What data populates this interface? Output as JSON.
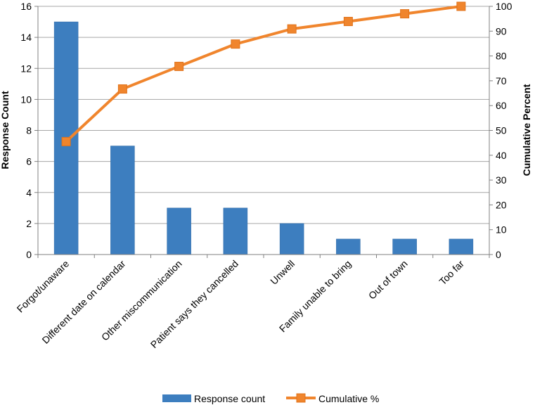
{
  "chart_data": {
    "type": "bar",
    "title": "",
    "categories": [
      "Forgot/unaware",
      "Different date on calendar",
      "Other miscommunication",
      "Patient says they cancelled",
      "Unwell",
      "Family unable to bring",
      "Out of town",
      "Too far"
    ],
    "series": [
      {
        "name": "Response count",
        "type": "bar",
        "axis": "left",
        "values": [
          15,
          7,
          3,
          3,
          2,
          1,
          1,
          1
        ]
      },
      {
        "name": "Cumulative %",
        "type": "line",
        "axis": "right",
        "marker": "square",
        "values": [
          45.5,
          66.7,
          75.8,
          84.8,
          90.9,
          93.9,
          97.0,
          100
        ]
      }
    ],
    "ylabel": "Response Count",
    "y2label": "Cumulative Percent",
    "ylim": [
      0,
      16
    ],
    "y2lim": [
      0,
      100
    ],
    "yticks": [
      0,
      2,
      4,
      6,
      8,
      10,
      12,
      14,
      16
    ],
    "y2ticks": [
      0,
      10,
      20,
      30,
      40,
      50,
      60,
      70,
      80,
      90,
      100
    ],
    "grid": true,
    "legend_position": "bottom",
    "colors": {
      "bar": "#3d7ebf",
      "bar_edge": "#2f6aa6",
      "line": "#f0852d",
      "marker": "#f0852d",
      "grid": "#a6a6a6"
    }
  }
}
